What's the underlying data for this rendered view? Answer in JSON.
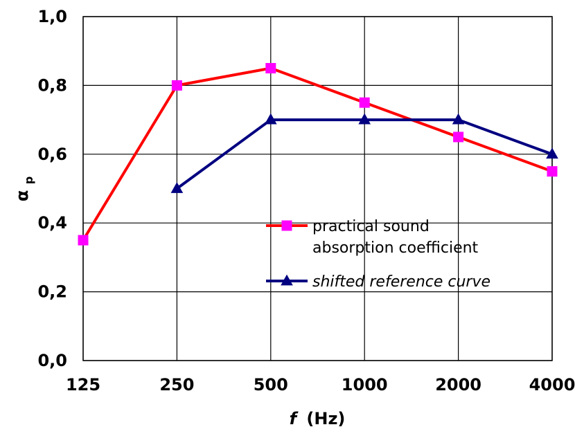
{
  "chart_data": {
    "type": "line",
    "x_scale": "log",
    "categories": [
      "125",
      "250",
      "500",
      "1000",
      "2000",
      "4000"
    ],
    "x": [
      125,
      250,
      500,
      1000,
      2000,
      4000
    ],
    "xlabel": "f",
    "xlabel_unit": "(Hz)",
    "ylabel": "α",
    "ylabel_sub": "p",
    "ylim": [
      0,
      1.0
    ],
    "yticks": [
      0,
      0.2,
      0.4,
      0.6,
      0.8,
      1.0
    ],
    "ytick_labels": [
      "0,0",
      "0,2",
      "0,4",
      "0,6",
      "0,8",
      "1,0"
    ],
    "grid": true,
    "legend_position": "center-right",
    "series": [
      {
        "name_lines": [
          "practical sound",
          "absorption coefficient"
        ],
        "x": [
          125,
          250,
          500,
          1000,
          2000,
          4000
        ],
        "values": [
          0.35,
          0.8,
          0.85,
          0.75,
          0.65,
          0.55
        ],
        "line_color": "#ff0000",
        "marker": "square",
        "marker_color": "#ff00ff",
        "italic": false
      },
      {
        "name_lines": [
          "shifted reference curve"
        ],
        "x": [
          250,
          500,
          1000,
          2000,
          4000
        ],
        "values": [
          0.5,
          0.7,
          0.7,
          0.7,
          0.6
        ],
        "line_color": "#000080",
        "marker": "triangle",
        "marker_color": "#000080",
        "italic": true
      }
    ]
  }
}
